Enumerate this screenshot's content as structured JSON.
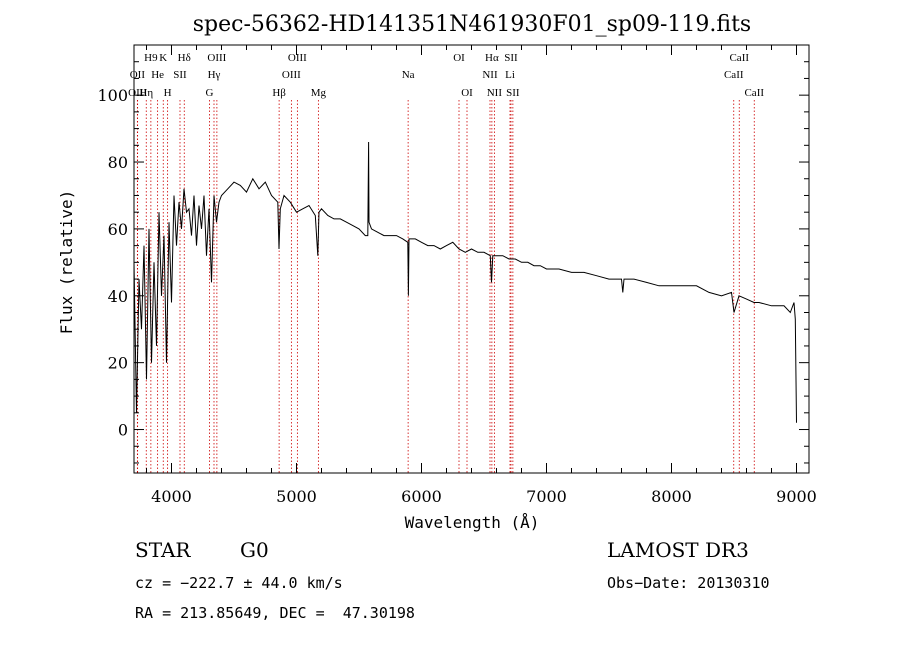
{
  "chart_data": {
    "type": "line",
    "title": "spec-56362-HD141351N461930F01_sp09-119.fits",
    "xlabel": "Wavelength (Å)",
    "ylabel": "Flux (relative)",
    "xlim": [
      3700,
      9100
    ],
    "ylim": [
      -13,
      115
    ],
    "x_ticks": [
      4000,
      5000,
      6000,
      7000,
      8000,
      9000
    ],
    "x_tick_labels": [
      "4000",
      "5000",
      "6000",
      "7000",
      "8000",
      "9000"
    ],
    "y_ticks": [
      0,
      20,
      40,
      60,
      80,
      100
    ],
    "y_tick_labels": [
      "0",
      "20",
      "40",
      "60",
      "80",
      "100"
    ],
    "line_color": "#000000",
    "marker_color": "#cc0000",
    "series": [
      {
        "name": "spectrum",
        "x": [
          3700,
          3720,
          3740,
          3760,
          3780,
          3800,
          3820,
          3840,
          3860,
          3880,
          3900,
          3920,
          3940,
          3960,
          3980,
          4000,
          4020,
          4040,
          4060,
          4080,
          4100,
          4120,
          4140,
          4160,
          4180,
          4200,
          4220,
          4240,
          4260,
          4280,
          4300,
          4320,
          4340,
          4360,
          4380,
          4400,
          4450,
          4500,
          4550,
          4600,
          4650,
          4700,
          4750,
          4800,
          4850,
          4860,
          4870,
          4900,
          4950,
          5000,
          5050,
          5100,
          5150,
          5170,
          5180,
          5200,
          5250,
          5300,
          5350,
          5400,
          5450,
          5500,
          5550,
          5570,
          5577,
          5580,
          5600,
          5650,
          5700,
          5750,
          5800,
          5850,
          5890,
          5895,
          5900,
          5950,
          6000,
          6050,
          6100,
          6150,
          6200,
          6250,
          6300,
          6350,
          6400,
          6450,
          6500,
          6550,
          6560,
          6570,
          6600,
          6650,
          6700,
          6750,
          6800,
          6850,
          6900,
          6950,
          7000,
          7100,
          7200,
          7300,
          7400,
          7500,
          7600,
          7610,
          7620,
          7700,
          7800,
          7900,
          8000,
          8100,
          8200,
          8300,
          8400,
          8480,
          8500,
          8540,
          8600,
          8660,
          8700,
          8800,
          8900,
          8950,
          8980,
          8990,
          9000
        ],
        "y": [
          50,
          5,
          45,
          30,
          55,
          15,
          60,
          20,
          50,
          25,
          65,
          40,
          58,
          20,
          62,
          38,
          70,
          55,
          68,
          60,
          72,
          65,
          66,
          58,
          70,
          55,
          67,
          60,
          70,
          52,
          66,
          44,
          70,
          62,
          68,
          70,
          72,
          74,
          73,
          71,
          75,
          72,
          74,
          70,
          68,
          54,
          66,
          70,
          68,
          65,
          66,
          67,
          64,
          52,
          65,
          66,
          64,
          63,
          63,
          62,
          61,
          60,
          58,
          58,
          86,
          62,
          60,
          59,
          58,
          58,
          58,
          57,
          56,
          40,
          57,
          57,
          56,
          55,
          55,
          54,
          55,
          56,
          54,
          53,
          54,
          53,
          53,
          52,
          44,
          52,
          52,
          52,
          51,
          51,
          50,
          50,
          49,
          49,
          48,
          48,
          47,
          47,
          46,
          45,
          45,
          41,
          45,
          45,
          44,
          43,
          43,
          43,
          43,
          41,
          40,
          41,
          35,
          40,
          39,
          38,
          38,
          37,
          37,
          35,
          38,
          33,
          2
        ]
      }
    ],
    "line_markers": [
      {
        "name": "H9",
        "wavelength": 3835,
        "label": "H9",
        "row": 1
      },
      {
        "name": "K",
        "wavelength": 3934,
        "label": "K",
        "row": 1
      },
      {
        "name": "Hdelta",
        "wavelength": 4102,
        "label": "Hδ",
        "row": 1
      },
      {
        "name": "OII-3727",
        "wavelength": 3727,
        "label": "OII",
        "row": 2
      },
      {
        "name": "He",
        "wavelength": 3889,
        "label": "He",
        "row": 2
      },
      {
        "name": "SII-4068",
        "wavelength": 4068,
        "label": "SII",
        "row": 2
      },
      {
        "name": "OIII-3727b",
        "wavelength": 3729,
        "label": "OIII",
        "row": 3
      },
      {
        "name": "Heta",
        "wavelength": 3798,
        "label": "Hη",
        "row": 3
      },
      {
        "name": "H",
        "wavelength": 3969,
        "label": "H",
        "row": 3
      },
      {
        "name": "OIII-4363",
        "wavelength": 4363,
        "label": "OIII",
        "row": 1
      },
      {
        "name": "Hgamma",
        "wavelength": 4340,
        "label": "Hγ",
        "row": 2
      },
      {
        "name": "G",
        "wavelength": 4304,
        "label": "G",
        "row": 3
      },
      {
        "name": "OIII-5007",
        "wavelength": 5007,
        "label": "OIII",
        "row": 1
      },
      {
        "name": "OIII-4959",
        "wavelength": 4959,
        "label": "OIII",
        "row": 2
      },
      {
        "name": "Hbeta",
        "wavelength": 4861,
        "label": "Hβ",
        "row": 3
      },
      {
        "name": "Mg",
        "wavelength": 5175,
        "label": "Mg",
        "row": 3
      },
      {
        "name": "Na",
        "wavelength": 5893,
        "label": "Na",
        "row": 2
      },
      {
        "name": "OI-6300",
        "wavelength": 6300,
        "label": "OI",
        "row": 1
      },
      {
        "name": "OI-6364",
        "wavelength": 6364,
        "label": "OI",
        "row": 3
      },
      {
        "name": "Halpha",
        "wavelength": 6563,
        "label": "Hα",
        "row": 1
      },
      {
        "name": "NII-6548",
        "wavelength": 6548,
        "label": "NII",
        "row": 2
      },
      {
        "name": "NII-6583",
        "wavelength": 6583,
        "label": "NII",
        "row": 3
      },
      {
        "name": "SII-6716",
        "wavelength": 6716,
        "label": "SII",
        "row": 1
      },
      {
        "name": "Li",
        "wavelength": 6708,
        "label": "Li",
        "row": 2
      },
      {
        "name": "SII-6731",
        "wavelength": 6731,
        "label": "SII",
        "row": 3
      },
      {
        "name": "CaII-8498",
        "wavelength": 8498,
        "label": "CaII",
        "row": 2
      },
      {
        "name": "CaII-8542",
        "wavelength": 8542,
        "label": "CaII",
        "row": 1
      },
      {
        "name": "CaII-8662",
        "wavelength": 8662,
        "label": "CaII",
        "row": 3
      }
    ]
  },
  "footer": {
    "object_class": "STAR",
    "subclass": "G0",
    "survey": "LAMOST DR3",
    "cz": "cz = −222.7 ± 44.0 km/s",
    "obs_date": "Obs−Date: 20130310",
    "coords": "RA = 213.85649, DEC =  47.30198"
  }
}
